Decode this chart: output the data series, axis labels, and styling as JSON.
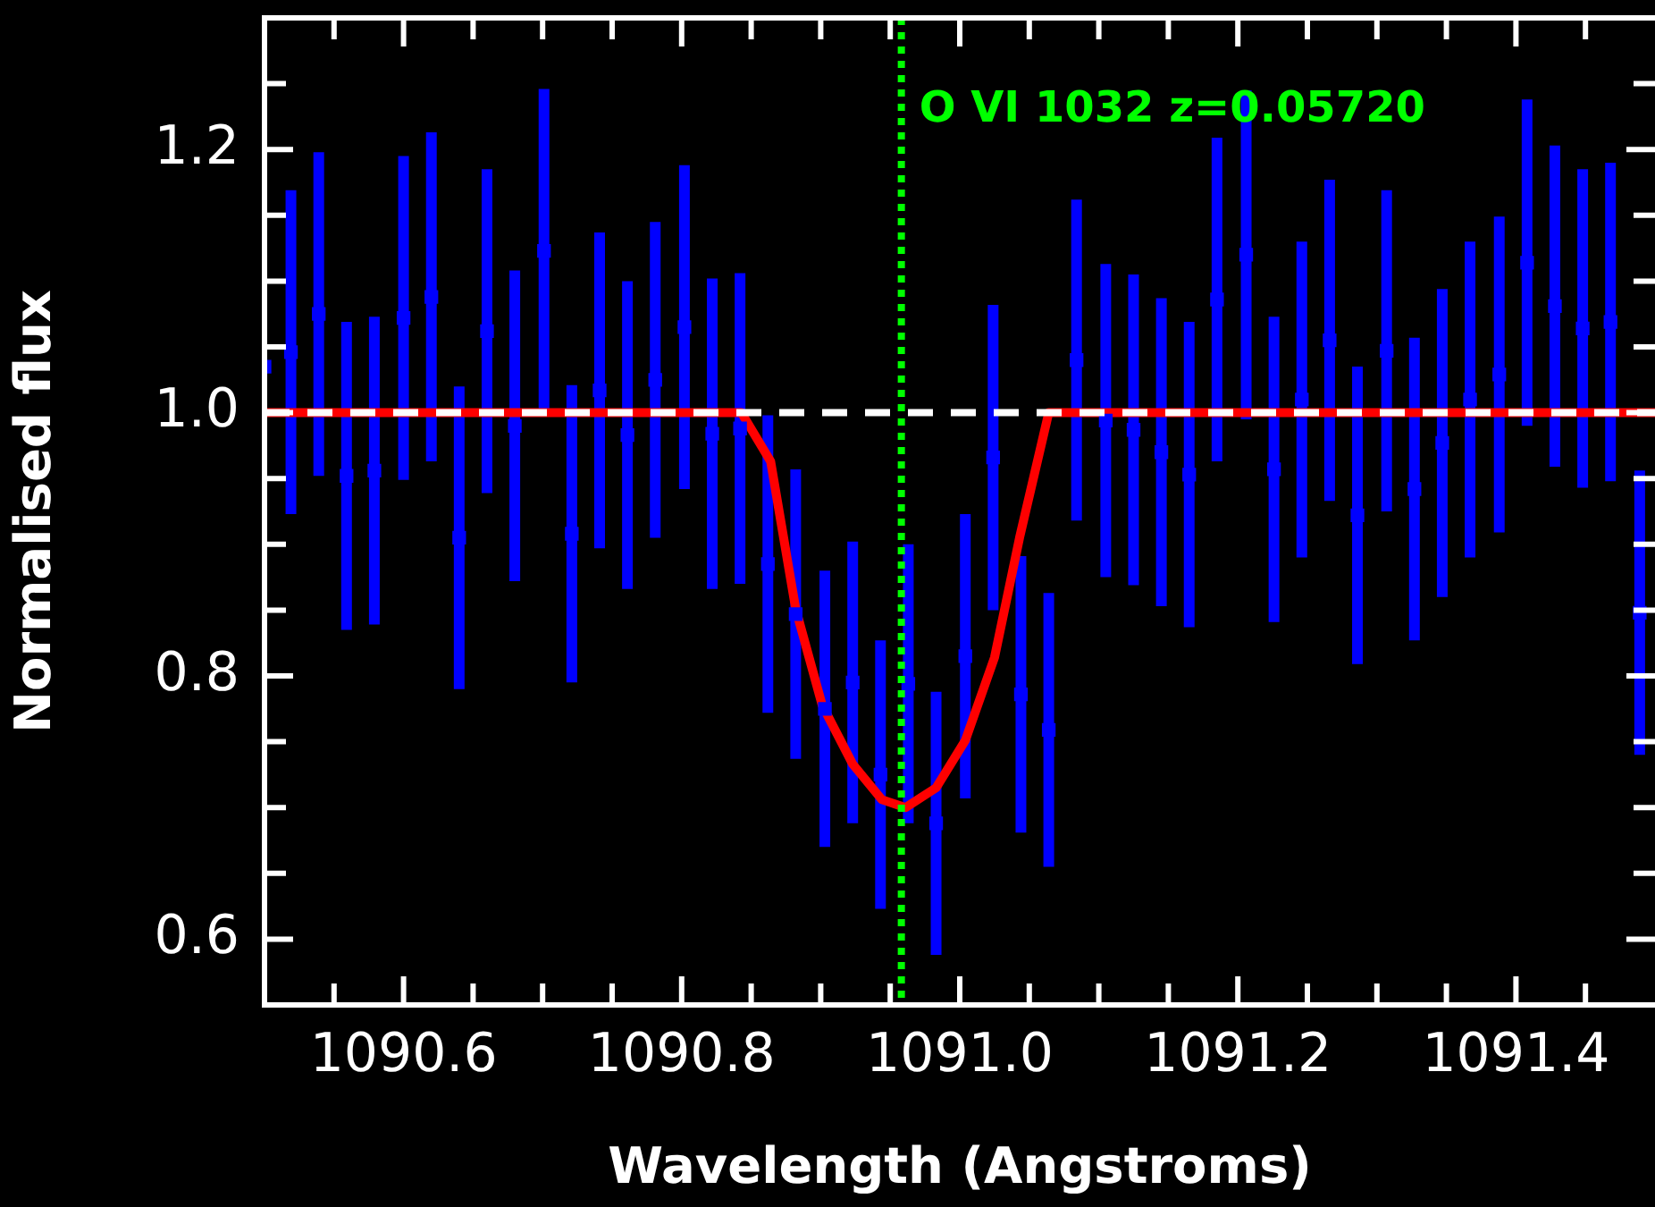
{
  "chart_data": {
    "type": "scatter",
    "xlabel": "Wavelength (Angstroms)",
    "ylabel": "Normalised flux",
    "xlim": [
      1090.5,
      1091.5
    ],
    "ylim": [
      0.55,
      1.3
    ],
    "xticks": [
      {
        "value": 1090.55,
        "label": null
      },
      {
        "value": 1090.6,
        "label": "1090.6"
      },
      {
        "value": 1090.65,
        "label": null
      },
      {
        "value": 1090.7,
        "label": null
      },
      {
        "value": 1090.75,
        "label": null
      },
      {
        "value": 1090.8,
        "label": "1090.8"
      },
      {
        "value": 1090.85,
        "label": null
      },
      {
        "value": 1090.9,
        "label": null
      },
      {
        "value": 1090.95,
        "label": null
      },
      {
        "value": 1091,
        "label": "1091.0"
      },
      {
        "value": 1091.05,
        "label": null
      },
      {
        "value": 1091.1,
        "label": null
      },
      {
        "value": 1091.15,
        "label": null
      },
      {
        "value": 1091.2,
        "label": "1091.2"
      },
      {
        "value": 1091.25,
        "label": null
      },
      {
        "value": 1091.3,
        "label": null
      },
      {
        "value": 1091.35,
        "label": null
      },
      {
        "value": 1091.4,
        "label": "1091.4"
      },
      {
        "value": 1091.45,
        "label": null
      }
    ],
    "yticks": [
      {
        "value": 0.6,
        "label": "0.6"
      },
      {
        "value": 0.65,
        "label": null
      },
      {
        "value": 0.7,
        "label": null
      },
      {
        "value": 0.75,
        "label": null
      },
      {
        "value": 0.8,
        "label": "0.8"
      },
      {
        "value": 0.85,
        "label": null
      },
      {
        "value": 0.9,
        "label": null
      },
      {
        "value": 0.95,
        "label": null
      },
      {
        "value": 1,
        "label": "1.0"
      },
      {
        "value": 1.05,
        "label": null
      },
      {
        "value": 1.1,
        "label": null
      },
      {
        "value": 1.15,
        "label": null
      },
      {
        "value": 1.2,
        "label": "1.2"
      },
      {
        "value": 1.25,
        "label": null
      }
    ],
    "grid": false,
    "legend": false,
    "series": [
      {
        "color": "#0000ff",
        "marker": "square",
        "x": [
          1090.5,
          1090.519,
          1090.539,
          1090.559,
          1090.579,
          1090.6,
          1090.62,
          1090.64,
          1090.66,
          1090.68,
          1090.701,
          1090.721,
          1090.741,
          1090.761,
          1090.781,
          1090.802,
          1090.822,
          1090.842,
          1090.862,
          1090.882,
          1090.903,
          1090.923,
          1090.943,
          1090.963,
          1090.983,
          1091.004,
          1091.024,
          1091.044,
          1091.064,
          1091.084,
          1091.105,
          1091.125,
          1091.145,
          1091.165,
          1091.185,
          1091.206,
          1091.226,
          1091.246,
          1091.266,
          1091.286,
          1091.307,
          1091.327,
          1091.347,
          1091.367,
          1091.388,
          1091.408,
          1091.428,
          1091.448,
          1091.468,
          1091.489
        ],
        "values": [
          1.035,
          1.046,
          1.075,
          0.952,
          0.956,
          1.072,
          1.088,
          0.905,
          1.062,
          0.99,
          1.123,
          0.908,
          1.017,
          0.983,
          1.025,
          1.065,
          0.984,
          0.988,
          0.885,
          0.847,
          0.775,
          0.795,
          0.725,
          0.794,
          0.688,
          0.815,
          0.966,
          0.786,
          0.759,
          1.04,
          0.994,
          0.987,
          0.97,
          0.953,
          1.086,
          1.12,
          0.957,
          1.01,
          1.055,
          0.922,
          1.047,
          0.942,
          0.977,
          1.01,
          1.029,
          1.114,
          1.081,
          1.064,
          1.069,
          0.848
        ],
        "errors": [
          null,
          0.123,
          0.123,
          0.117,
          0.117,
          0.123,
          0.125,
          0.115,
          0.123,
          0.118,
          0.123,
          0.113,
          0.12,
          0.117,
          0.12,
          0.123,
          0.118,
          0.118,
          0.113,
          0.11,
          0.105,
          0.107,
          0.102,
          0.106,
          0.1,
          0.108,
          0.116,
          0.105,
          0.104,
          0.122,
          0.119,
          0.118,
          0.117,
          0.116,
          0.123,
          0.125,
          0.116,
          0.12,
          0.122,
          0.113,
          0.122,
          0.115,
          0.117,
          0.12,
          0.12,
          0.124,
          0.122,
          0.121,
          0.121,
          0.108
        ]
      },
      {
        "type": "line",
        "color": "#ff0000",
        "x": [
          1090.5,
          1090.843,
          1090.864,
          1090.882,
          1090.901,
          1090.923,
          1090.944,
          1090.961,
          1090.983,
          1091.004,
          1091.025,
          1091.043,
          1091.064,
          1091.5
        ],
        "values": [
          1,
          1,
          0.963,
          0.851,
          0.778,
          0.733,
          0.706,
          0.7,
          0.715,
          0.751,
          0.814,
          0.905,
          1,
          1
        ]
      }
    ],
    "ref_lines": [
      {
        "axis": "y",
        "value": 1,
        "color": "#ffffff",
        "line_style": "dashed"
      },
      {
        "axis": "x",
        "value": 1090.958,
        "color": "#00ff00",
        "line_style": "dotted"
      }
    ],
    "annotations": [
      {
        "text": "O VI 1032 z=0.05720",
        "x": 1090.958,
        "y": 1.23
      }
    ]
  }
}
